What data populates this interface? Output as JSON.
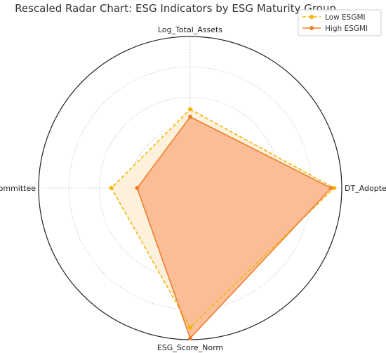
{
  "chart_data": {
    "type": "radar",
    "title": "Rescaled Radar Chart: ESG Indicators by ESG Maturity Group",
    "axes": [
      "Log_Total_Assets",
      "DT_Adopter_Binary",
      "ESG_Score_Norm",
      "ESG_Committee"
    ],
    "rlim": [
      0,
      1
    ],
    "grid": true,
    "legend_position": "top-right",
    "series": [
      {
        "name": "Low ESGMI",
        "values": [
          0.52,
          0.95,
          0.92,
          0.52
        ],
        "color": "#f2b705",
        "fill_color": "#fdf1dc",
        "line_style": "dashed"
      },
      {
        "name": "High ESGMI",
        "values": [
          0.47,
          0.93,
          0.99,
          0.35
        ],
        "color": "#f07f2e",
        "fill_color": "#f9b48a",
        "line_style": "solid"
      }
    ]
  }
}
